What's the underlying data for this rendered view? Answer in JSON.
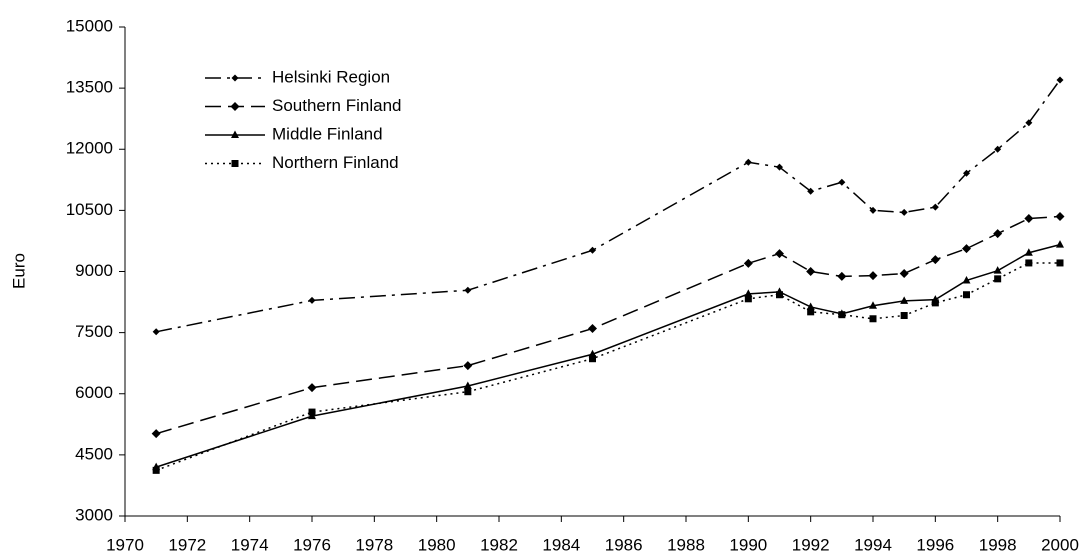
{
  "chart_data": {
    "type": "line",
    "y_label": "Euro",
    "x": [
      1971,
      1976,
      1981,
      1985,
      1990,
      1991,
      1992,
      1993,
      1994,
      1995,
      1996,
      1997,
      1998,
      1999,
      2000
    ],
    "series": [
      {
        "name": "Helsinki Region",
        "color": "#000000",
        "dash": "dashdot",
        "marker": "diamond-small",
        "values": [
          7520,
          8290,
          8540,
          9520,
          11680,
          11560,
          10970,
          11190,
          10500,
          10450,
          10580,
          11410,
          12000,
          12650,
          13700
        ]
      },
      {
        "name": "Southern Finland",
        "color": "#000000",
        "dash": "dash",
        "marker": "diamond",
        "values": [
          5020,
          6150,
          6690,
          7600,
          9200,
          9440,
          9000,
          8880,
          8900,
          8950,
          9290,
          9560,
          9930,
          10300,
          10350
        ]
      },
      {
        "name": "Middle Finland",
        "color": "#000000",
        "dash": "solid",
        "marker": "triangle",
        "values": [
          4200,
          5450,
          6190,
          6970,
          8450,
          8500,
          8130,
          7960,
          8160,
          8280,
          8310,
          8780,
          9020,
          9460,
          9660
        ]
      },
      {
        "name": "Northern Finland",
        "color": "#000000",
        "dash": "dot",
        "marker": "square",
        "values": [
          4120,
          5550,
          6050,
          6860,
          8330,
          8430,
          8010,
          7940,
          7840,
          7920,
          8230,
          8430,
          8820,
          9210,
          9210
        ]
      }
    ],
    "xlim": [
      1970,
      2000
    ],
    "xticks": [
      1970,
      1972,
      1974,
      1976,
      1978,
      1980,
      1982,
      1984,
      1986,
      1988,
      1990,
      1992,
      1994,
      1996,
      1998,
      2000
    ],
    "ylim": [
      3000,
      15000
    ],
    "yticks": [
      3000,
      4500,
      6000,
      7500,
      9000,
      10500,
      12000,
      13500,
      15000
    ],
    "legend": "top-left"
  }
}
